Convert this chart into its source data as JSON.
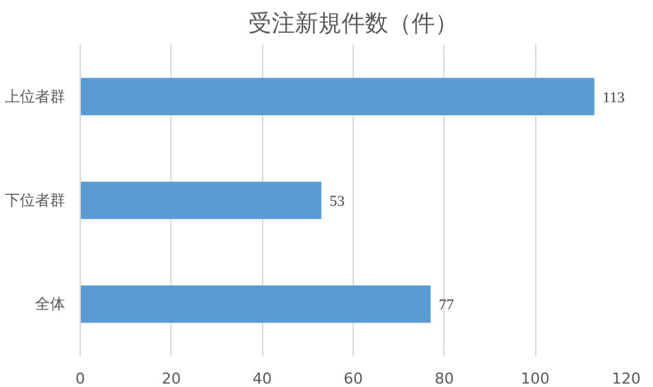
{
  "chart_data": {
    "type": "bar",
    "orientation": "horizontal",
    "title": "受注新規件数（件）",
    "categories": [
      "上位者群",
      "下位者群",
      "全体"
    ],
    "values": [
      113,
      53,
      77
    ],
    "color": "#5b9bd5",
    "xlim": [
      0,
      120
    ],
    "xticks": [
      0,
      20,
      40,
      60,
      80,
      100,
      120
    ],
    "grid": "x",
    "data_labels": true
  }
}
